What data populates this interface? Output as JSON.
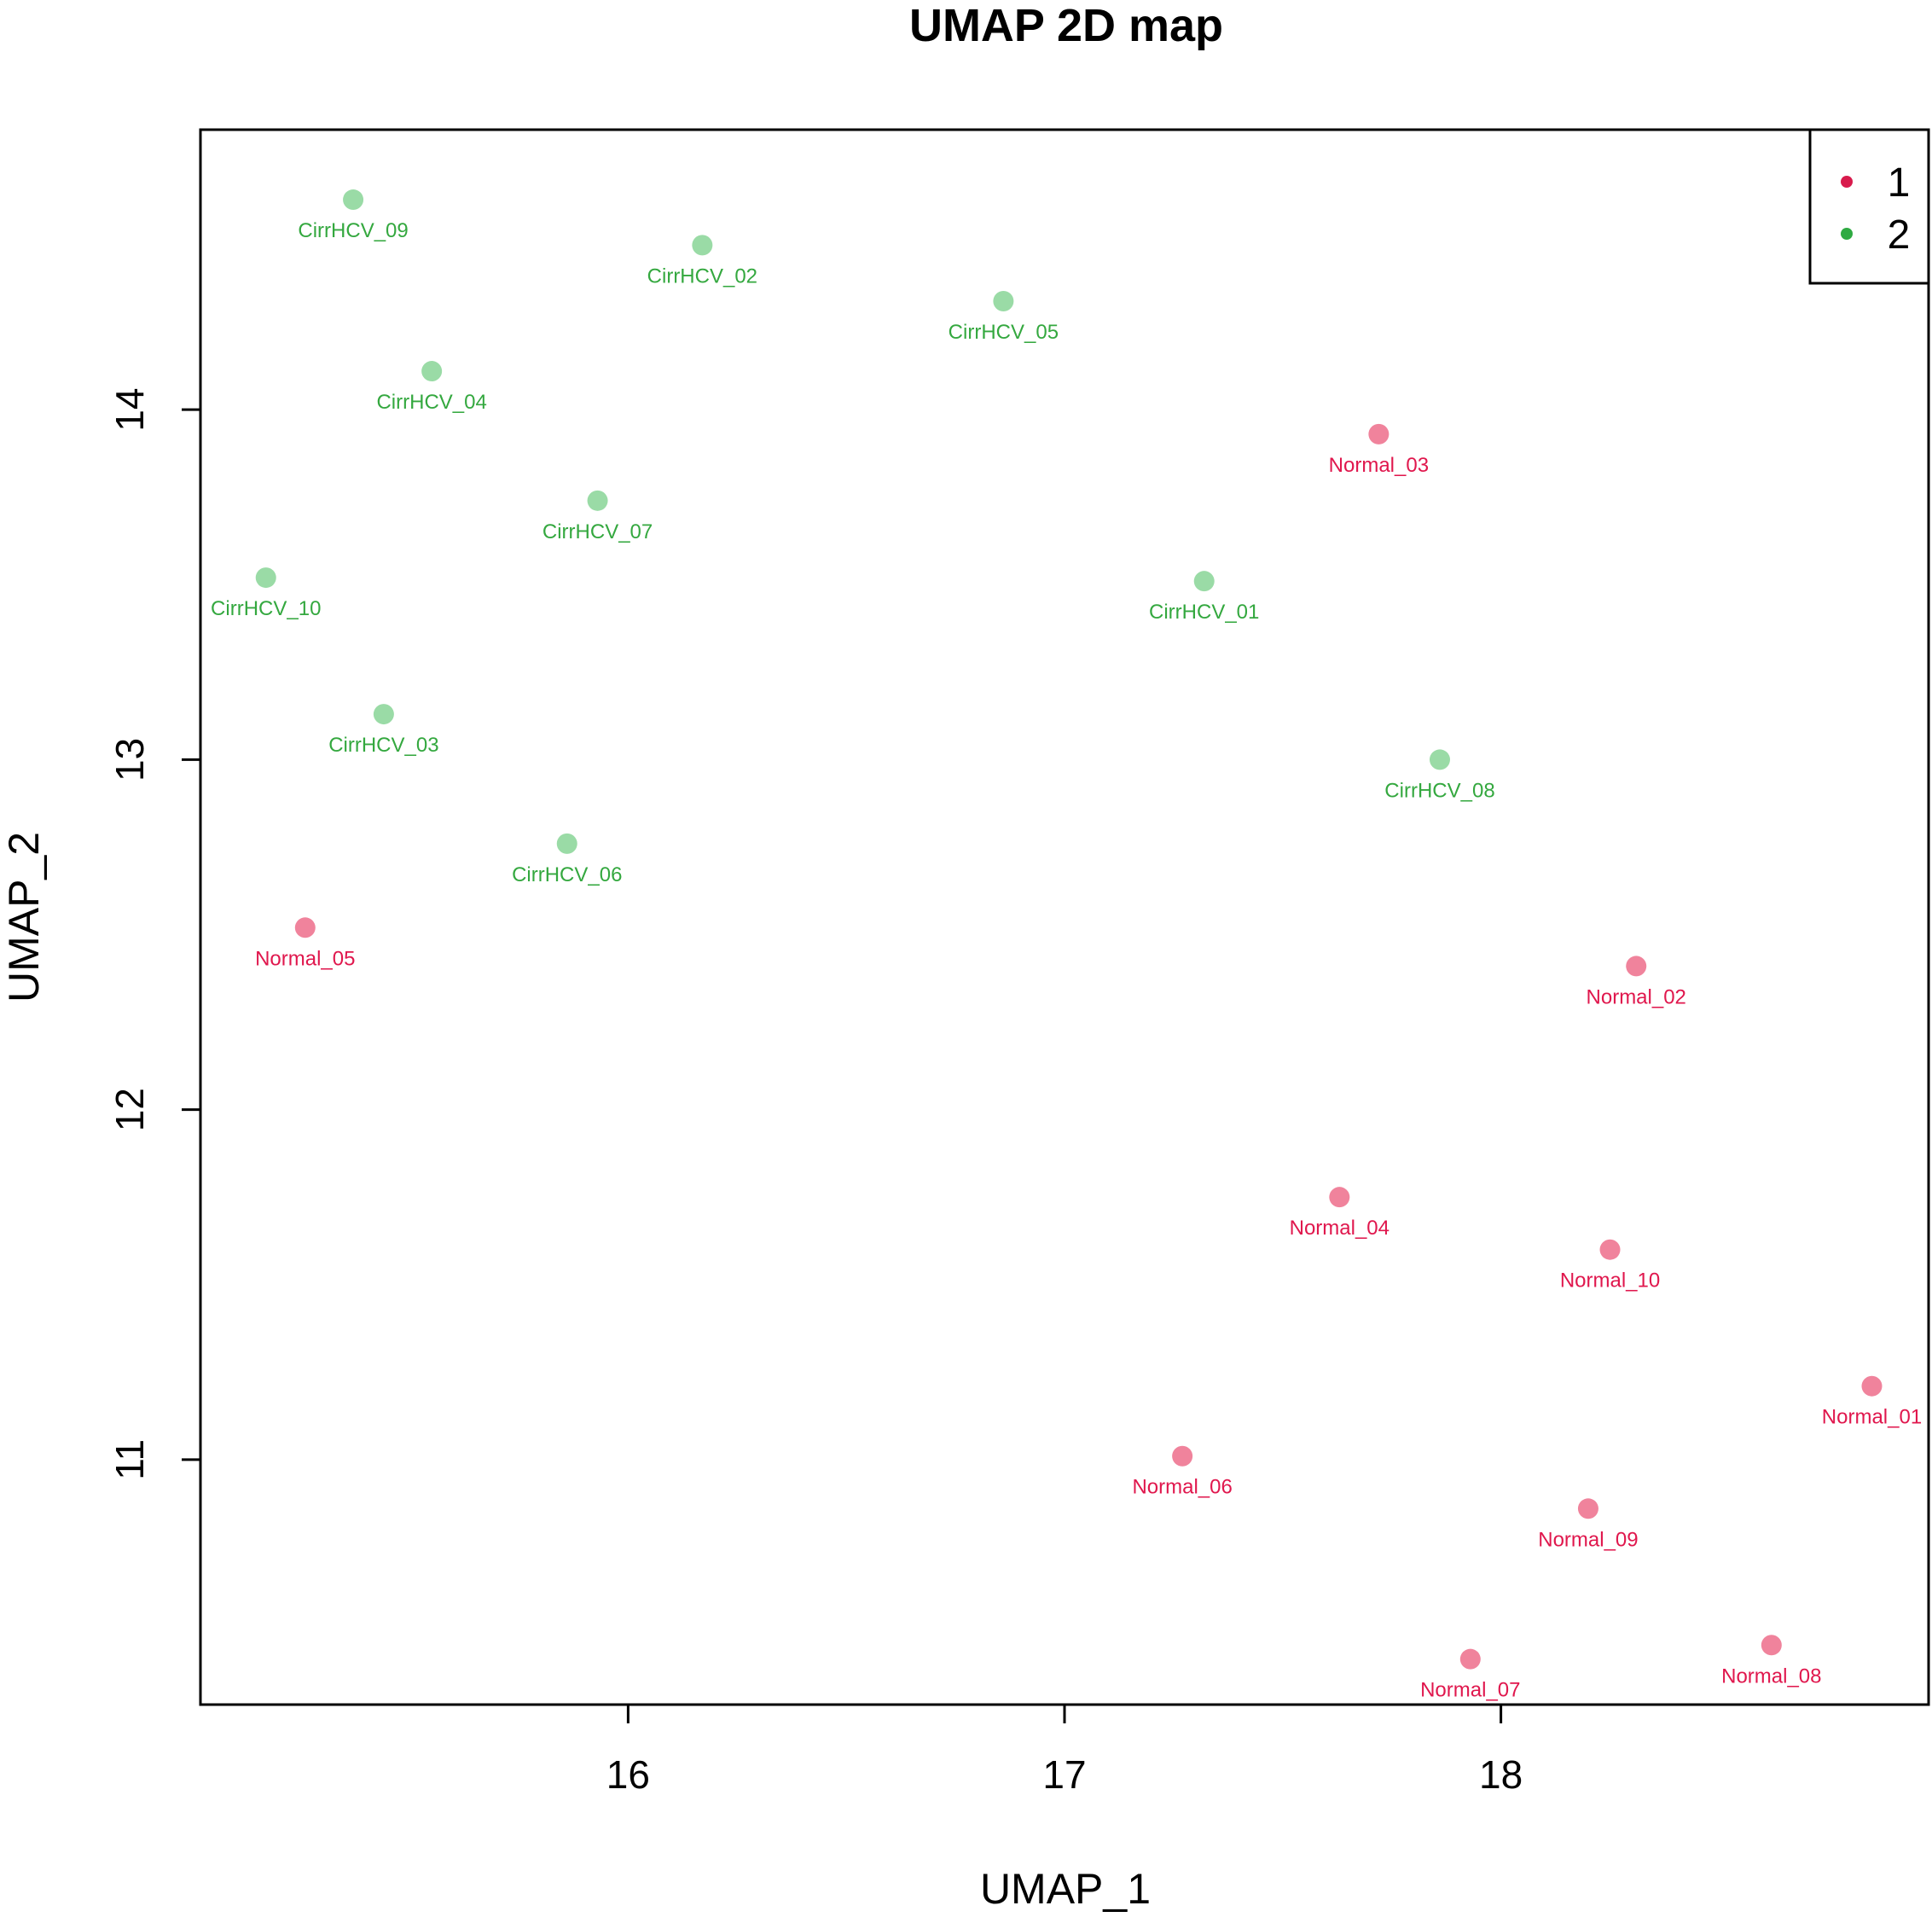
{
  "chart_data": {
    "type": "scatter",
    "title": "UMAP 2D map",
    "xlabel": "UMAP_1",
    "ylabel": "UMAP_2",
    "xlim": [
      15.02,
      18.98
    ],
    "ylim": [
      10.3,
      14.8
    ],
    "xticks": [
      16,
      17,
      18
    ],
    "yticks": [
      11,
      12,
      13,
      14
    ],
    "grid": false,
    "legend_position": "top-right",
    "colors": {
      "1": {
        "point": "#F0839C",
        "label": "#E0174D",
        "legend": "#D81B4C"
      },
      "2": {
        "point": "#9ADBA6",
        "label": "#34A83F",
        "legend": "#2EAA42"
      }
    },
    "legend": [
      {
        "label": "1",
        "group": "1"
      },
      {
        "label": "2",
        "group": "2"
      }
    ],
    "points": [
      {
        "label": "CirrHCV_09",
        "x": 15.37,
        "y": 14.6,
        "group": "2"
      },
      {
        "label": "CirrHCV_02",
        "x": 16.17,
        "y": 14.47,
        "group": "2"
      },
      {
        "label": "CirrHCV_05",
        "x": 16.86,
        "y": 14.31,
        "group": "2"
      },
      {
        "label": "CirrHCV_04",
        "x": 15.55,
        "y": 14.11,
        "group": "2"
      },
      {
        "label": "Normal_03",
        "x": 17.72,
        "y": 13.93,
        "group": "1"
      },
      {
        "label": "CirrHCV_07",
        "x": 15.93,
        "y": 13.74,
        "group": "2"
      },
      {
        "label": "CirrHCV_10",
        "x": 15.17,
        "y": 13.52,
        "group": "2"
      },
      {
        "label": "CirrHCV_01",
        "x": 17.32,
        "y": 13.51,
        "group": "2"
      },
      {
        "label": "CirrHCV_03",
        "x": 15.44,
        "y": 13.13,
        "group": "2"
      },
      {
        "label": "CirrHCV_08",
        "x": 17.86,
        "y": 13.0,
        "group": "2"
      },
      {
        "label": "CirrHCV_06",
        "x": 15.86,
        "y": 12.76,
        "group": "2"
      },
      {
        "label": "Normal_05",
        "x": 15.26,
        "y": 12.52,
        "group": "1"
      },
      {
        "label": "Normal_02",
        "x": 18.31,
        "y": 12.41,
        "group": "1"
      },
      {
        "label": "Normal_04",
        "x": 17.63,
        "y": 11.75,
        "group": "1"
      },
      {
        "label": "Normal_10",
        "x": 18.25,
        "y": 11.6,
        "group": "1"
      },
      {
        "label": "Normal_01",
        "x": 18.85,
        "y": 11.21,
        "group": "1"
      },
      {
        "label": "Normal_06",
        "x": 17.27,
        "y": 11.01,
        "group": "1"
      },
      {
        "label": "Normal_09",
        "x": 18.2,
        "y": 10.86,
        "group": "1"
      },
      {
        "label": "Normal_08",
        "x": 18.62,
        "y": 10.47,
        "group": "1"
      },
      {
        "label": "Normal_07",
        "x": 17.93,
        "y": 10.43,
        "group": "1"
      }
    ]
  }
}
